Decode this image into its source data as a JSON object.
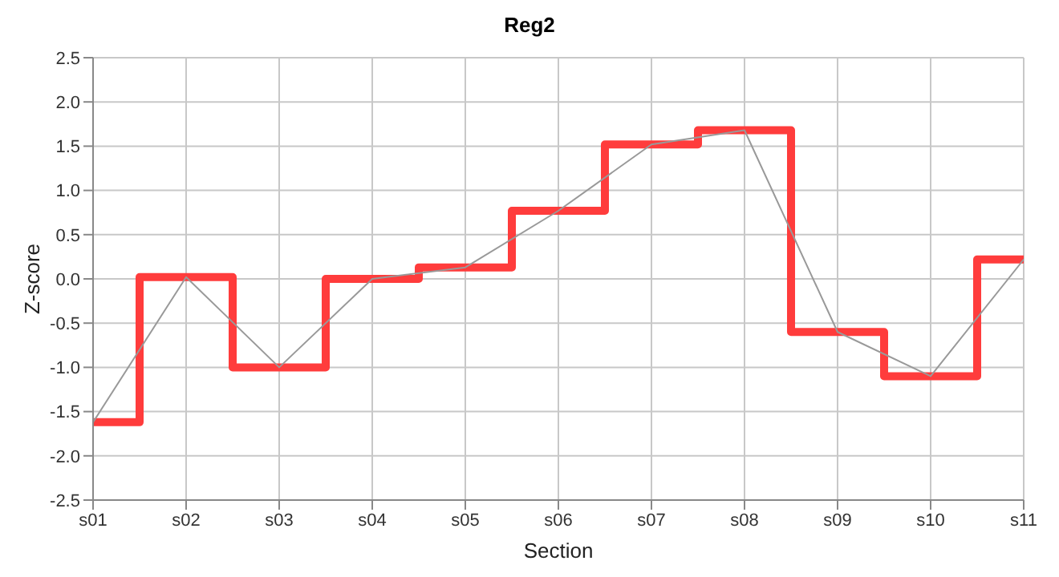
{
  "chart_data": {
    "type": "line",
    "title": "Reg2",
    "xlabel": "Section",
    "ylabel": "Z-score",
    "categories": [
      "s01",
      "s02",
      "s03",
      "s04",
      "s05",
      "s06",
      "s07",
      "s08",
      "s09",
      "s10",
      "s11"
    ],
    "series": [
      {
        "type": "step",
        "color": "#ff3c3c",
        "values": [
          -1.62,
          0.02,
          -1.0,
          0.0,
          0.13,
          0.77,
          1.52,
          1.68,
          -0.6,
          -1.1,
          0.22
        ]
      },
      {
        "type": "line",
        "color": "#999999",
        "values": [
          -1.62,
          0.02,
          -1.0,
          0.0,
          0.13,
          0.77,
          1.52,
          1.68,
          -0.6,
          -1.1,
          0.22
        ]
      }
    ],
    "ylim": [
      -2.5,
      2.5
    ],
    "yticks": [
      -2.5,
      {
        "value": -2,
        "label": "-2.0"
      },
      -1.5,
      {
        "value": -1,
        "label": "-1.0"
      },
      -0.5,
      {
        "value": 0,
        "label": "0.0"
      },
      0.5,
      {
        "value": 1,
        "label": "1.0"
      },
      1.5,
      {
        "value": 2,
        "label": "2.0"
      },
      2.5
    ],
    "grid": true,
    "marker": "none",
    "line_style": "solid"
  }
}
